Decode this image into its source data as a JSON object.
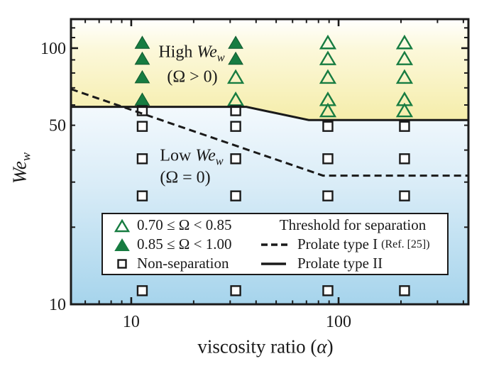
{
  "figure": {
    "colors": {
      "green": "#177c41",
      "green_dark": "#10592f",
      "ink": "#1a1a1a",
      "region_top_stops": [
        [
          "0",
          "#fffffe"
        ],
        [
          "0.3",
          "#fcf8da"
        ],
        [
          "1",
          "#f5edaa"
        ]
      ],
      "region_bottom_stops": [
        [
          "0",
          "#f3f9fd"
        ],
        [
          "0.4",
          "#d9ecf7"
        ],
        [
          "1",
          "#a6d4ec"
        ]
      ]
    }
  },
  "chart_data": {
    "type": "scatter",
    "title": "",
    "xlabel": "viscosity ratio (α)",
    "ylabel": "We_w",
    "x_axis": {
      "scale": "log",
      "min": 5.12,
      "max": 423,
      "major_ticks": [
        10,
        100
      ],
      "minor_ticks": [
        6,
        7,
        8,
        9,
        20,
        30,
        40,
        50,
        60,
        70,
        80,
        90,
        200,
        300,
        400
      ],
      "labeled_ticks": [
        {
          "value": 10,
          "label": "10"
        },
        {
          "value": 100,
          "label": "100"
        }
      ]
    },
    "y_axis": {
      "scale": "log",
      "min": 10,
      "max": 129.8,
      "major_ticks": [
        10,
        100
      ],
      "minor_ticks": [
        20,
        30,
        40,
        50,
        60,
        70,
        80,
        90,
        110,
        120
      ],
      "labeled_ticks": [
        {
          "value": 100,
          "label": "100"
        },
        {
          "value": 50,
          "label": "50"
        },
        {
          "value": 10,
          "label": "10"
        }
      ]
    },
    "series": [
      {
        "name": "0.85 ≤ Ω < 1.00",
        "marker": "filled-triangle",
        "points": [
          [
            11.3,
            105
          ],
          [
            11.3,
            91
          ],
          [
            11.3,
            77
          ],
          [
            11.3,
            63
          ],
          [
            31.9,
            105
          ],
          [
            31.9,
            91
          ]
        ]
      },
      {
        "name": "0.70 ≤ Ω < 0.85",
        "marker": "open-triangle",
        "points": [
          [
            31.9,
            77
          ],
          [
            31.9,
            63
          ],
          [
            88.8,
            105
          ],
          [
            88.8,
            91
          ],
          [
            88.8,
            77
          ],
          [
            88.8,
            63
          ],
          [
            88.8,
            57
          ],
          [
            208,
            105
          ],
          [
            208,
            91
          ],
          [
            208,
            77
          ],
          [
            208,
            63
          ],
          [
            208,
            57
          ]
        ]
      },
      {
        "name": "Non-separation",
        "marker": "open-square",
        "points": [
          [
            11.3,
            57
          ],
          [
            11.3,
            49.5
          ],
          [
            11.3,
            37
          ],
          [
            11.3,
            26.5
          ],
          [
            11.3,
            11.3
          ],
          [
            31.9,
            57
          ],
          [
            31.9,
            49.5
          ],
          [
            31.9,
            37
          ],
          [
            31.9,
            26.5
          ],
          [
            31.9,
            11.3
          ],
          [
            88.8,
            49.5
          ],
          [
            88.8,
            37
          ],
          [
            88.8,
            26.5
          ],
          [
            88.8,
            11.3
          ],
          [
            208,
            49.5
          ],
          [
            208,
            37
          ],
          [
            208,
            26.5
          ],
          [
            208,
            11.3
          ]
        ]
      }
    ],
    "lines": [
      {
        "name": "Prolate type I",
        "style": "dashed",
        "points": [
          [
            5.12,
            69.2
          ],
          [
            84.1,
            31.8
          ],
          [
            423,
            31.8
          ]
        ]
      },
      {
        "name": "Prolate type II",
        "style": "solid",
        "points": [
          [
            5.12,
            59
          ],
          [
            35.9,
            59
          ],
          [
            71.8,
            52.4
          ],
          [
            423,
            52.4
          ]
        ]
      }
    ],
    "legend_position": "bottom-center",
    "grid": false
  },
  "axis_labels": {
    "x_prefix": "viscosity ratio (",
    "x_alpha": "α",
    "x_suffix": ")",
    "y_main": "We",
    "y_sub": "w"
  },
  "annotations": {
    "high": {
      "prefix": "High ",
      "var": "We",
      "sub": "w",
      "line2": "(Ω > 0)"
    },
    "low": {
      "prefix": "Low ",
      "var": "We",
      "sub": "w",
      "line2": "(Ω = 0)"
    }
  },
  "legend": {
    "items": [
      {
        "label": "0.70 ≤ Ω < 0.85",
        "marker": "open-triangle"
      },
      {
        "label": "0.85 ≤ Ω < 1.00",
        "marker": "filled-triangle"
      },
      {
        "label": "Non-separation",
        "marker": "open-square"
      }
    ],
    "threshold_title": "Threshold for separation",
    "threshold_items": [
      {
        "label": "Prolate type I",
        "ref": "(Ref. [25])",
        "style": "dashed"
      },
      {
        "label": "Prolate type II",
        "ref": "",
        "style": "solid"
      }
    ]
  }
}
